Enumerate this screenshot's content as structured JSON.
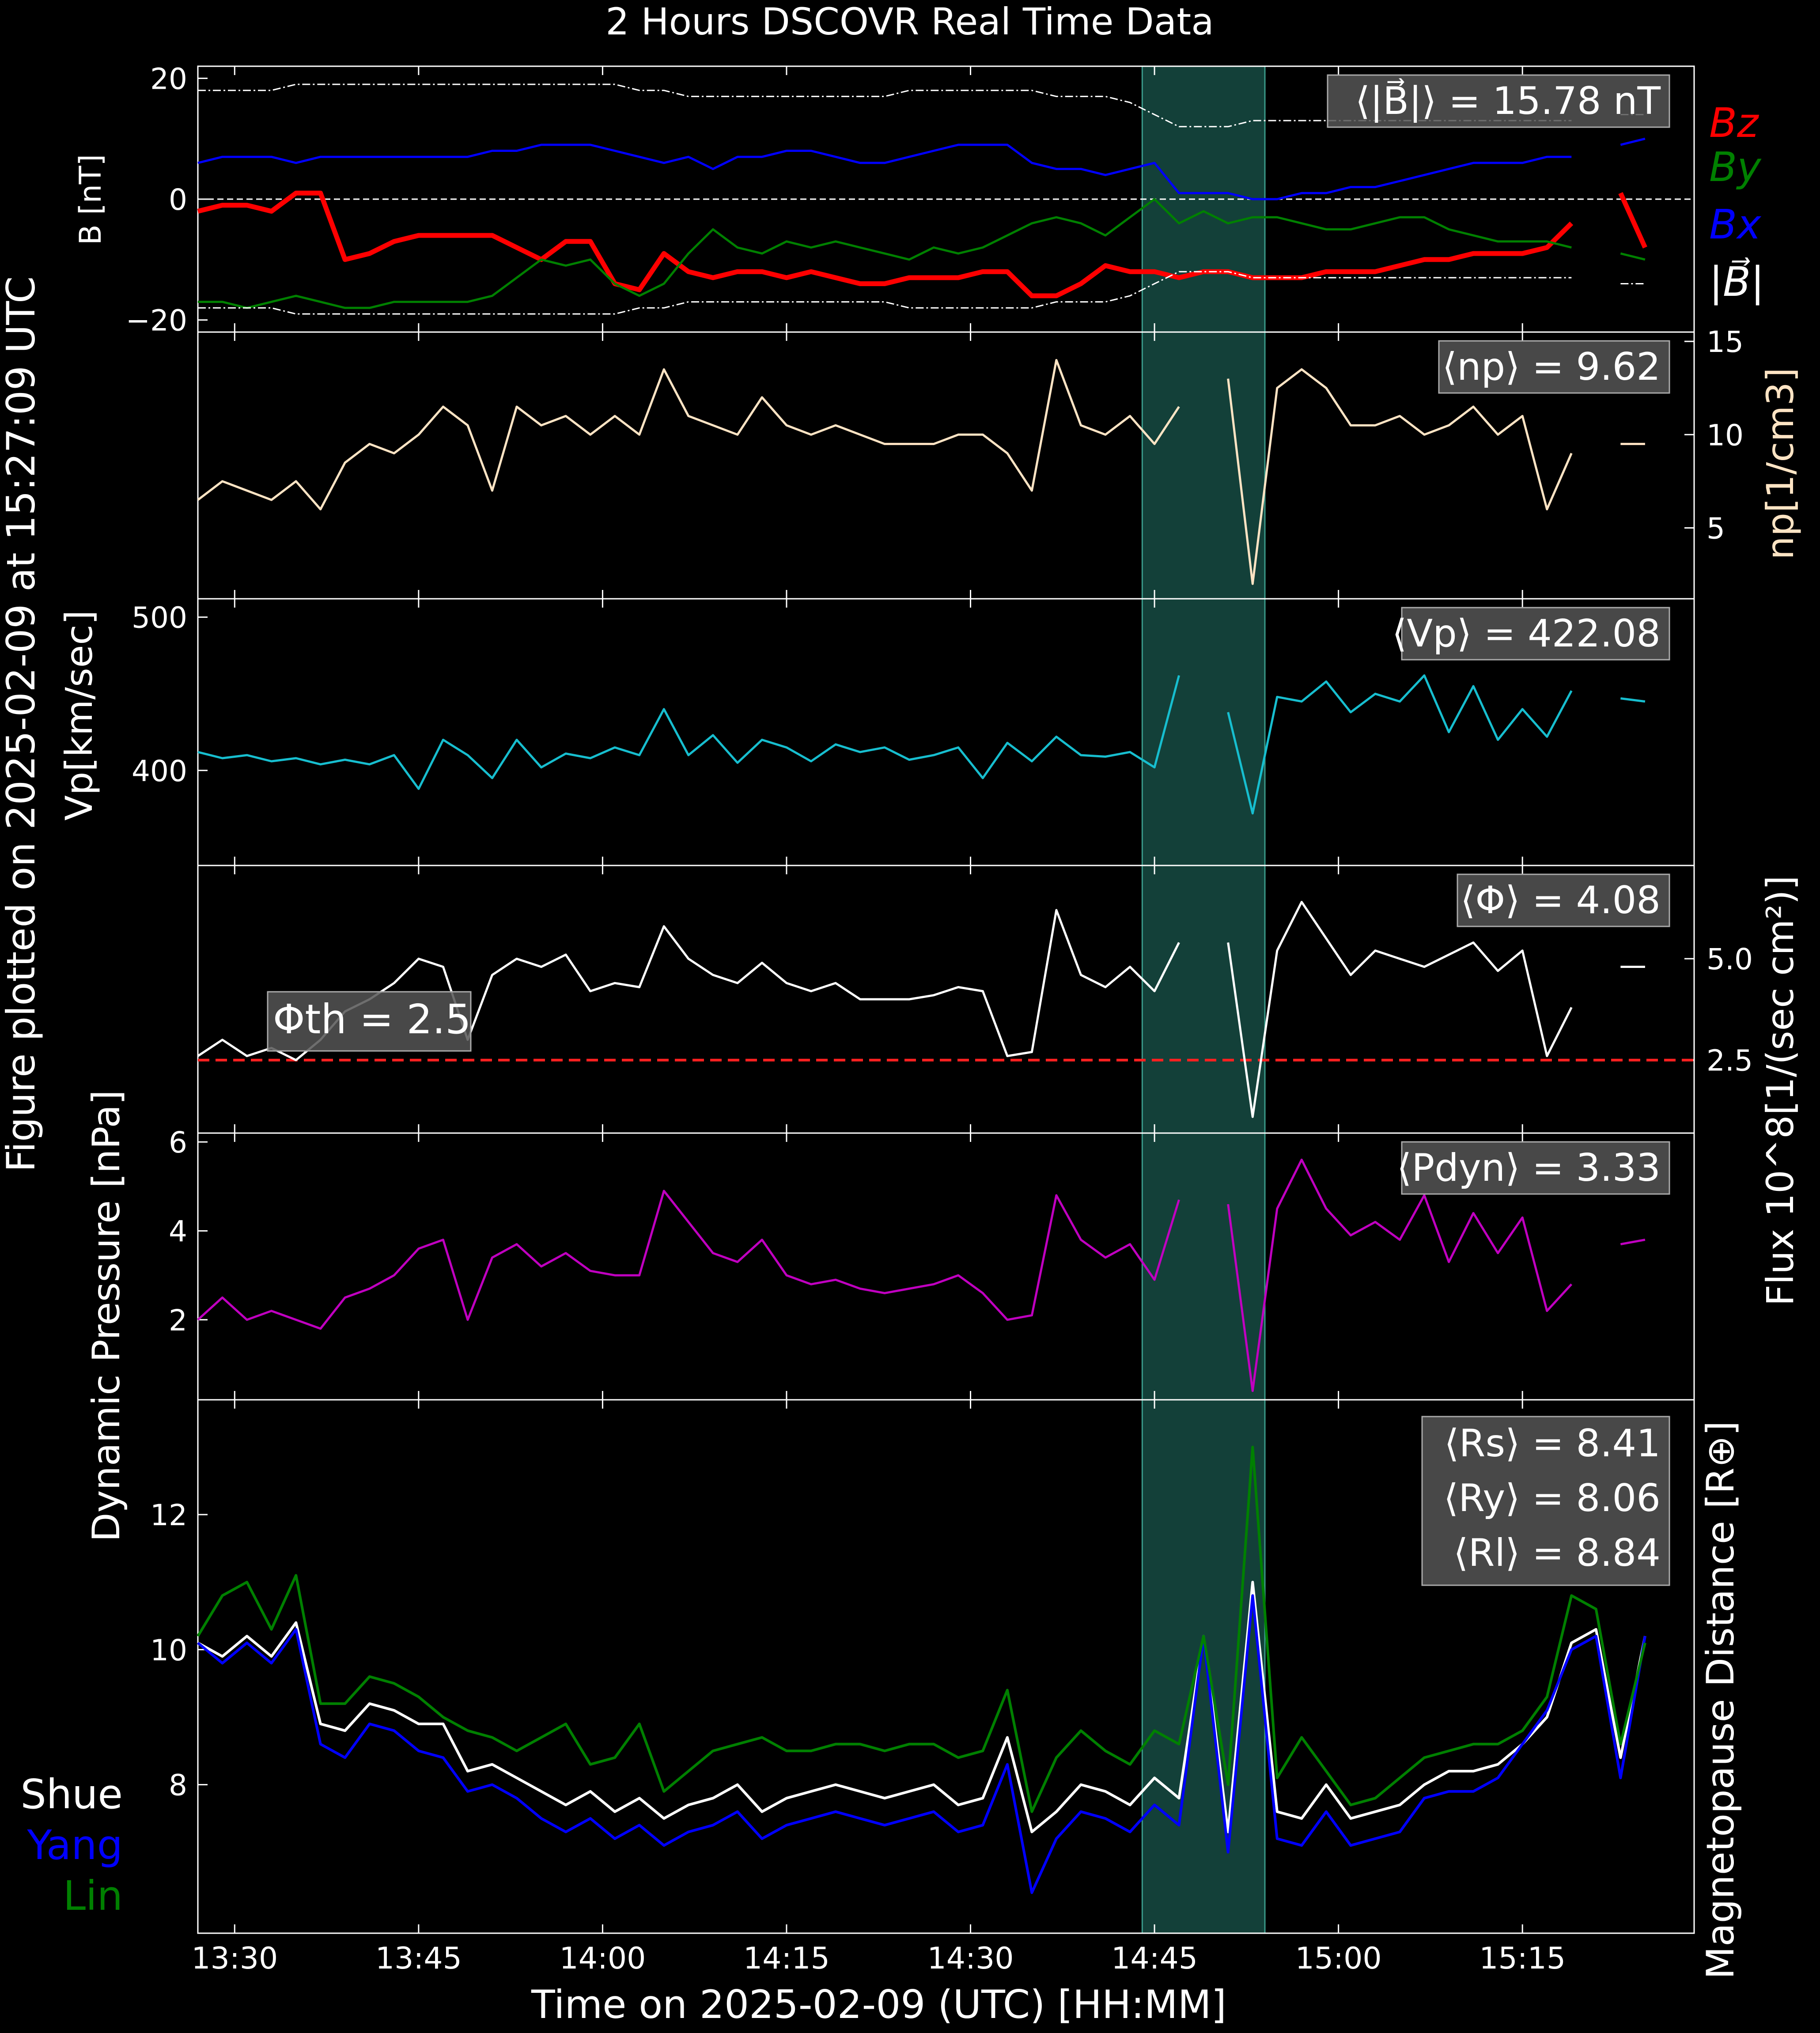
{
  "title": "2 Hours DSCOVR Real Time Data",
  "side_label": "Figure plotted on 2025-02-09 at 15:27:09 UTC",
  "xlabel": "Time on 2025-02-09 (UTC) [HH:MM]",
  "x_ticks": [
    "13:30",
    "13:45",
    "14:00",
    "14:15",
    "14:30",
    "14:45",
    "15:00",
    "15:15"
  ],
  "shaded_interval": {
    "start": "14:44",
    "end": "14:54"
  },
  "colors": {
    "bz": "#ff0000",
    "by": "#008000",
    "bx": "#0000ff",
    "bt": "#ffffff",
    "np": "#ffe4c4",
    "vp": "#17becf",
    "flux": "#ffffff",
    "pdyn": "#c000c0",
    "shue": "#ffffff",
    "yang": "#0000ff",
    "lin": "#008000",
    "shade": "#2e8b80",
    "threshold": "#ff2020"
  },
  "chart_data": [
    {
      "type": "line",
      "panel": "magnetic-field",
      "ylabel": "B [nT]",
      "y_ticks": [
        "20",
        "0",
        "−20"
      ],
      "ylim": [
        -22,
        22
      ],
      "mean_label": "⟨|B⃗|⟩ = 15.78 nT",
      "legend": [
        "Bz",
        "By",
        "Bx",
        "|B⃗|"
      ],
      "x_minutes_from_1327": [
        0,
        2,
        4,
        6,
        8,
        10,
        12,
        14,
        16,
        18,
        20,
        22,
        24,
        26,
        28,
        30,
        32,
        34,
        36,
        38,
        40,
        42,
        44,
        46,
        48,
        50,
        52,
        54,
        56,
        58,
        60,
        62,
        64,
        66,
        68,
        70,
        72,
        74,
        76,
        78,
        80,
        82,
        84,
        86,
        88,
        90,
        92,
        94,
        96,
        98,
        100,
        102,
        104,
        106,
        108,
        110,
        112,
        114,
        116,
        118
      ],
      "series": [
        {
          "name": "Bz",
          "values": [
            -2,
            -1,
            -1,
            -2,
            1,
            1,
            -10,
            -9,
            -7,
            -6,
            -6,
            -6,
            -6,
            -8,
            -10,
            -7,
            -7,
            -14,
            -15,
            -9,
            -12,
            -13,
            -12,
            -12,
            -13,
            -12,
            -13,
            -14,
            -14,
            -13,
            -13,
            -13,
            -12,
            -12,
            -16,
            -16,
            -14,
            -11,
            -12,
            -12,
            -13,
            -12,
            -12,
            -13,
            -13,
            -13,
            -12,
            -12,
            -12,
            -11,
            -10,
            -10,
            -9,
            -9,
            -9,
            -8,
            -4,
            null,
            1,
            -8
          ]
        },
        {
          "name": "By",
          "values": [
            -17,
            -17,
            -18,
            -17,
            -16,
            -17,
            -18,
            -18,
            -17,
            -17,
            -17,
            -17,
            -16,
            -13,
            -10,
            -11,
            -10,
            -14,
            -16,
            -14,
            -9,
            -5,
            -8,
            -9,
            -7,
            -8,
            -7,
            -8,
            -9,
            -10,
            -8,
            -9,
            -8,
            -6,
            -4,
            -3,
            -4,
            -6,
            -3,
            0,
            -4,
            -2,
            -4,
            -3,
            -3,
            -4,
            -5,
            -5,
            -4,
            -3,
            -3,
            -5,
            -6,
            -7,
            -7,
            -7,
            -8,
            null,
            -9,
            -10
          ]
        },
        {
          "name": "Bx",
          "values": [
            6,
            7,
            7,
            7,
            6,
            7,
            7,
            7,
            7,
            7,
            7,
            7,
            8,
            8,
            9,
            9,
            9,
            8,
            7,
            6,
            7,
            5,
            7,
            7,
            8,
            8,
            7,
            6,
            6,
            7,
            8,
            9,
            9,
            9,
            6,
            5,
            5,
            4,
            5,
            6,
            1,
            1,
            1,
            0,
            0,
            1,
            1,
            2,
            2,
            3,
            4,
            5,
            6,
            6,
            6,
            7,
            7,
            null,
            9,
            10
          ]
        },
        {
          "name": "|B|",
          "values": [
            18,
            18,
            18,
            18,
            19,
            19,
            19,
            19,
            19,
            19,
            19,
            19,
            19,
            19,
            19,
            19,
            19,
            19,
            18,
            18,
            17,
            17,
            17,
            17,
            17,
            17,
            17,
            17,
            17,
            18,
            18,
            18,
            18,
            18,
            18,
            17,
            17,
            17,
            16,
            14,
            12,
            12,
            12,
            13,
            13,
            13,
            13,
            13,
            13,
            13,
            13,
            13,
            13,
            13,
            13,
            13,
            13,
            null,
            14,
            14
          ]
        }
      ]
    },
    {
      "type": "line",
      "panel": "proton-density",
      "ylabel": "np[1/cm3]",
      "y_ticks": [
        "15",
        "10",
        "5"
      ],
      "ylim": [
        1.2,
        15.5
      ],
      "mean_label": "⟨np⟩ = 9.62",
      "x_minutes_from_1327": [
        0,
        2,
        4,
        6,
        8,
        10,
        12,
        14,
        16,
        18,
        20,
        22,
        24,
        26,
        28,
        30,
        32,
        34,
        36,
        38,
        40,
        42,
        44,
        46,
        48,
        50,
        52,
        54,
        56,
        58,
        60,
        62,
        64,
        66,
        68,
        70,
        72,
        74,
        76,
        78,
        80,
        82,
        84,
        86,
        88,
        90,
        92,
        94,
        96,
        98,
        100,
        102,
        104,
        106,
        108,
        110,
        112,
        114,
        116,
        118
      ],
      "series": [
        {
          "name": "",
          "values": [
            6.5,
            7.5,
            7.0,
            6.5,
            7.5,
            6.0,
            8.5,
            9.5,
            9.0,
            10.0,
            11.5,
            10.5,
            7.0,
            11.5,
            10.5,
            11.0,
            10.0,
            11.0,
            10.0,
            13.5,
            11.0,
            10.5,
            10.0,
            12.0,
            10.5,
            10.0,
            10.5,
            10.0,
            9.5,
            9.5,
            9.5,
            10.0,
            10.0,
            9.0,
            7.0,
            14.0,
            10.5,
            10.0,
            11.0,
            9.5,
            11.5,
            null,
            13.0,
            2.0,
            12.5,
            13.5,
            12.5,
            10.5,
            10.5,
            11.0,
            10.0,
            10.5,
            11.5,
            10.0,
            11.0,
            6.0,
            9.0,
            null,
            9.5,
            9.5
          ]
        }
      ]
    },
    {
      "type": "line",
      "panel": "proton-speed",
      "ylabel": "Vp[km/sec]",
      "y_ticks": [
        "500",
        "400"
      ],
      "ylim": [
        338,
        512
      ],
      "mean_label": "⟨Vp⟩ = 422.08",
      "x_minutes_from_1327": [
        0,
        2,
        4,
        6,
        8,
        10,
        12,
        14,
        16,
        18,
        20,
        22,
        24,
        26,
        28,
        30,
        32,
        34,
        36,
        38,
        40,
        42,
        44,
        46,
        48,
        50,
        52,
        54,
        56,
        58,
        60,
        62,
        64,
        66,
        68,
        70,
        72,
        74,
        76,
        78,
        80,
        82,
        84,
        86,
        88,
        90,
        92,
        94,
        96,
        98,
        100,
        102,
        104,
        106,
        108,
        110,
        112,
        114,
        116,
        118
      ],
      "series": [
        {
          "name": "",
          "values": [
            412,
            408,
            410,
            406,
            408,
            404,
            407,
            404,
            410,
            388,
            420,
            410,
            395,
            420,
            402,
            411,
            408,
            415,
            410,
            440,
            410,
            423,
            405,
            420,
            415,
            406,
            417,
            412,
            415,
            407,
            410,
            415,
            395,
            418,
            406,
            422,
            410,
            409,
            412,
            402,
            462,
            null,
            438,
            372,
            448,
            445,
            458,
            438,
            450,
            445,
            462,
            425,
            455,
            420,
            440,
            422,
            452,
            null,
            447,
            445
          ]
        }
      ]
    },
    {
      "type": "line",
      "panel": "proton-flux",
      "ylabel": "Flux 10^8[1/(sec cm²)]",
      "y_ticks": [
        "5.0",
        "2.5"
      ],
      "ylim": [
        0.7,
        7.3
      ],
      "mean_label": "⟨Φ⟩ = 4.08",
      "threshold_label": "Φth = 2.5",
      "threshold_value": 2.5,
      "x_minutes_from_1327": [
        0,
        2,
        4,
        6,
        8,
        10,
        12,
        14,
        16,
        18,
        20,
        22,
        24,
        26,
        28,
        30,
        32,
        34,
        36,
        38,
        40,
        42,
        44,
        46,
        48,
        50,
        52,
        54,
        56,
        58,
        60,
        62,
        64,
        66,
        68,
        70,
        72,
        74,
        76,
        78,
        80,
        82,
        84,
        86,
        88,
        90,
        92,
        94,
        96,
        98,
        100,
        102,
        104,
        106,
        108,
        110,
        112,
        114,
        116,
        118
      ],
      "series": [
        {
          "name": "",
          "values": [
            2.6,
            3.0,
            2.6,
            2.8,
            2.5,
            3.0,
            3.7,
            4.0,
            4.4,
            5.0,
            4.8,
            3.0,
            4.6,
            5.0,
            4.8,
            5.1,
            4.2,
            4.4,
            4.3,
            5.8,
            5.0,
            4.6,
            4.4,
            4.9,
            4.4,
            4.2,
            4.4,
            4.0,
            4.0,
            4.0,
            4.1,
            4.3,
            4.2,
            2.6,
            2.7,
            6.2,
            4.6,
            4.3,
            4.8,
            4.2,
            5.4,
            null,
            5.4,
            1.1,
            5.2,
            6.4,
            5.5,
            4.6,
            5.2,
            5.0,
            4.8,
            5.1,
            5.4,
            4.7,
            5.2,
            2.6,
            3.8,
            null,
            4.8,
            4.8
          ]
        }
      ]
    },
    {
      "type": "line",
      "panel": "dynamic-pressure",
      "ylabel": "Dynamic Pressure [nPa]",
      "y_ticks": [
        "6",
        "4",
        "2"
      ],
      "ylim": [
        0.2,
        6.2
      ],
      "mean_label": "⟨Pdyn⟩ = 3.33",
      "x_minutes_from_1327": [
        0,
        2,
        4,
        6,
        8,
        10,
        12,
        14,
        16,
        18,
        20,
        22,
        24,
        26,
        28,
        30,
        32,
        34,
        36,
        38,
        40,
        42,
        44,
        46,
        48,
        50,
        52,
        54,
        56,
        58,
        60,
        62,
        64,
        66,
        68,
        70,
        72,
        74,
        76,
        78,
        80,
        82,
        84,
        86,
        88,
        90,
        92,
        94,
        96,
        98,
        100,
        102,
        104,
        106,
        108,
        110,
        112,
        114,
        116,
        118
      ],
      "series": [
        {
          "name": "",
          "values": [
            2.0,
            2.5,
            2.0,
            2.2,
            2.0,
            1.8,
            2.5,
            2.7,
            3.0,
            3.6,
            3.8,
            2.0,
            3.4,
            3.7,
            3.2,
            3.5,
            3.1,
            3.0,
            3.0,
            4.9,
            4.2,
            3.5,
            3.3,
            3.8,
            3.0,
            2.8,
            2.9,
            2.7,
            2.6,
            2.7,
            2.8,
            3.0,
            2.6,
            2.0,
            2.1,
            4.8,
            3.8,
            3.4,
            3.7,
            2.9,
            4.7,
            null,
            4.6,
            0.4,
            4.5,
            5.6,
            4.5,
            3.9,
            4.2,
            3.8,
            4.8,
            3.3,
            4.4,
            3.5,
            4.3,
            2.2,
            2.8,
            null,
            3.7,
            3.8
          ]
        }
      ]
    },
    {
      "type": "line",
      "panel": "magnetopause-distance",
      "ylabel": "Magnetopause Distance [R⊕]",
      "y_ticks": [
        "12",
        "10",
        "8"
      ],
      "ylim": [
        5.8,
        13.7
      ],
      "mean_labels": [
        "⟨Rs⟩ = 8.41",
        "⟨Ry⟩ = 8.06",
        "⟨Rl⟩ = 8.84"
      ],
      "legend": [
        "Shue",
        "Yang",
        "Lin"
      ],
      "x_minutes_from_1327": [
        0,
        2,
        4,
        6,
        8,
        10,
        12,
        14,
        16,
        18,
        20,
        22,
        24,
        26,
        28,
        30,
        32,
        34,
        36,
        38,
        40,
        42,
        44,
        46,
        48,
        50,
        52,
        54,
        56,
        58,
        60,
        62,
        64,
        66,
        68,
        70,
        72,
        74,
        76,
        78,
        80,
        82,
        84,
        86,
        88,
        90,
        92,
        94,
        96,
        98,
        100,
        102,
        104,
        106,
        108,
        110,
        112,
        114,
        116,
        118
      ],
      "series": [
        {
          "name": "Shue",
          "values": [
            10.1,
            9.9,
            10.2,
            9.9,
            10.4,
            8.9,
            8.8,
            9.2,
            9.1,
            8.9,
            8.9,
            8.2,
            8.3,
            8.1,
            7.9,
            7.7,
            7.9,
            7.6,
            7.8,
            7.5,
            7.7,
            7.8,
            8.0,
            7.6,
            7.8,
            7.9,
            8.0,
            7.9,
            7.8,
            7.9,
            8.0,
            7.7,
            7.8,
            8.7,
            7.3,
            7.6,
            8.0,
            7.9,
            7.7,
            8.1,
            7.8,
            10.2,
            7.3,
            11.0,
            7.6,
            7.5,
            8.0,
            7.5,
            7.6,
            7.7,
            8.0,
            8.2,
            8.2,
            8.3,
            8.6,
            9.0,
            10.1,
            10.3,
            8.4,
            10.2
          ]
        },
        {
          "name": "Yang",
          "values": [
            10.1,
            9.8,
            10.1,
            9.8,
            10.3,
            8.6,
            8.4,
            8.9,
            8.8,
            8.5,
            8.4,
            7.9,
            8.0,
            7.8,
            7.5,
            7.3,
            7.5,
            7.2,
            7.4,
            7.1,
            7.3,
            7.4,
            7.6,
            7.2,
            7.4,
            7.5,
            7.6,
            7.5,
            7.4,
            7.5,
            7.6,
            7.3,
            7.4,
            8.3,
            6.4,
            7.2,
            7.6,
            7.5,
            7.3,
            7.7,
            7.4,
            10.2,
            7.0,
            10.8,
            7.2,
            7.1,
            7.6,
            7.1,
            7.2,
            7.3,
            7.8,
            7.9,
            7.9,
            8.1,
            8.6,
            9.1,
            10.0,
            10.2,
            8.1,
            10.2
          ]
        },
        {
          "name": "Lin",
          "values": [
            10.2,
            10.8,
            11.0,
            10.3,
            11.1,
            9.2,
            9.2,
            9.6,
            9.5,
            9.3,
            9.0,
            8.8,
            8.7,
            8.5,
            8.7,
            8.9,
            8.3,
            8.4,
            8.9,
            7.9,
            8.2,
            8.5,
            8.6,
            8.7,
            8.5,
            8.5,
            8.6,
            8.6,
            8.5,
            8.6,
            8.6,
            8.4,
            8.5,
            9.4,
            7.6,
            8.4,
            8.8,
            8.5,
            8.3,
            8.8,
            8.6,
            10.2,
            8.0,
            13.0,
            8.1,
            8.7,
            8.2,
            7.7,
            7.8,
            8.1,
            8.4,
            8.5,
            8.6,
            8.6,
            8.8,
            9.3,
            10.8,
            10.6,
            8.6,
            10.1
          ]
        }
      ]
    }
  ]
}
